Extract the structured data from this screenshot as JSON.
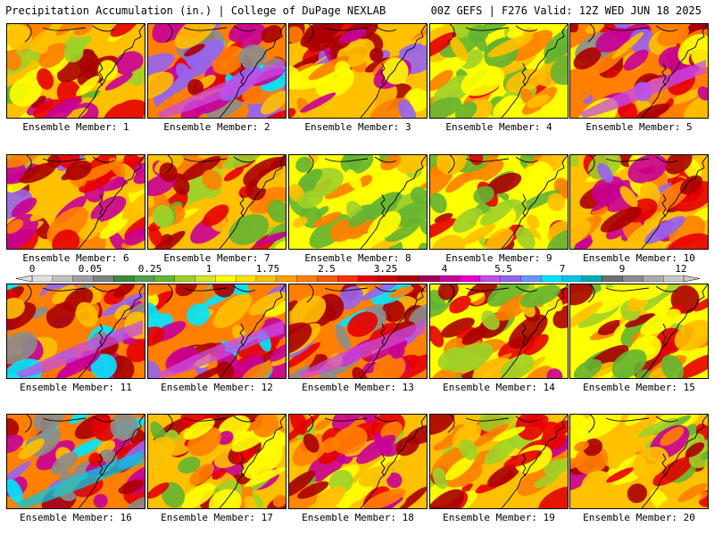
{
  "header": {
    "title_left": "Precipitation Accumulation (in.) | College of DuPage NEXLAB",
    "title_right": "00Z GEFS | F276 Valid: 12Z WED JUN 18 2025"
  },
  "map_content": {
    "variable": "Precipitation Accumulation",
    "units": "in.",
    "coastline_color": "#000000"
  },
  "members": [
    {
      "label": "Ensemble Member: 1",
      "level": 0.45
    },
    {
      "label": "Ensemble Member: 2",
      "level": 0.7
    },
    {
      "label": "Ensemble Member: 3",
      "level": 0.55
    },
    {
      "label": "Ensemble Member: 4",
      "level": 0.25
    },
    {
      "label": "Ensemble Member: 5",
      "level": 0.65
    },
    {
      "label": "Ensemble Member: 6",
      "level": 0.55
    },
    {
      "label": "Ensemble Member: 7",
      "level": 0.45
    },
    {
      "label": "Ensemble Member: 8",
      "level": 0.2
    },
    {
      "label": "Ensemble Member: 9",
      "level": 0.35
    },
    {
      "label": "Ensemble Member: 10",
      "level": 0.55
    },
    {
      "label": "Ensemble Member: 11",
      "level": 0.7
    },
    {
      "label": "Ensemble Member: 12",
      "level": 0.65
    },
    {
      "label": "Ensemble Member: 13",
      "level": 0.7
    },
    {
      "label": "Ensemble Member: 14",
      "level": 0.4
    },
    {
      "label": "Ensemble Member: 15",
      "level": 0.4
    },
    {
      "label": "Ensemble Member: 16",
      "level": 0.75
    },
    {
      "label": "Ensemble Member: 17",
      "level": 0.45
    },
    {
      "label": "Ensemble Member: 18",
      "level": 0.45
    },
    {
      "label": "Ensemble Member: 19",
      "level": 0.5
    },
    {
      "label": "Ensemble Member: 20",
      "level": 0.45
    }
  ],
  "colorbar": {
    "tick_labels": [
      "0",
      "0.05",
      "0.25",
      "1",
      "1.75",
      "2.5",
      "3.25",
      "4",
      "5.5",
      "7",
      "9",
      "12"
    ],
    "colors": [
      "#e0e0e0",
      "#c0c0c0",
      "#a0a0a0",
      "#808080",
      "#3c8a3c",
      "#50a050",
      "#64b432",
      "#a0d028",
      "#d0e628",
      "#ffff00",
      "#ffe000",
      "#ffc000",
      "#ffa000",
      "#ff8000",
      "#ff5a00",
      "#ff3000",
      "#e60000",
      "#c80000",
      "#aa0000",
      "#a0005a",
      "#c80096",
      "#e600c8",
      "#c84be6",
      "#9664f0",
      "#6496ff",
      "#00e6ff",
      "#00c8e6",
      "#00aab4",
      "#6e6e6e",
      "#8c8c8c",
      "#aaaaaa",
      "#c8c8c8"
    ]
  }
}
